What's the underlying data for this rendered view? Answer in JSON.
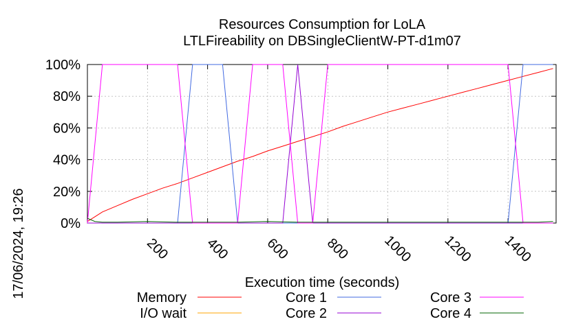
{
  "chart_data": {
    "type": "line",
    "title": "Resources Consumption for LoLA",
    "subtitle": "LTLFireability on DBSingleClientW-PT-d1m07",
    "xlabel": "Execution time (seconds)",
    "ylabel": "",
    "xlim": [
      0,
      1560
    ],
    "ylim": [
      0,
      100
    ],
    "xticks": [
      200,
      400,
      600,
      800,
      1000,
      1200,
      1400
    ],
    "xtick_labels": [
      "200",
      "400",
      "600",
      "800",
      "1000",
      "1200",
      "1400"
    ],
    "yticks": [
      0,
      20,
      40,
      60,
      80,
      100
    ],
    "ytick_labels": [
      "0%",
      "20%",
      "40%",
      "60%",
      "80%",
      "100%"
    ],
    "grid": true,
    "legend_position": "bottom",
    "timestamp": "17/06/2024, 19:26",
    "series": [
      {
        "name": "Memory",
        "color": "#ff0000",
        "x": [
          0,
          25,
          50,
          100,
          150,
          200,
          250,
          300,
          350,
          400,
          450,
          500,
          550,
          600,
          650,
          700,
          750,
          800,
          850,
          900,
          950,
          1000,
          1050,
          1100,
          1150,
          1200,
          1250,
          1300,
          1350,
          1400,
          1450,
          1500,
          1550
        ],
        "values": [
          1,
          4,
          7,
          11,
          15,
          18.5,
          22,
          25,
          28.5,
          32,
          35.5,
          39,
          42,
          45.5,
          48.5,
          51.5,
          54.5,
          57.5,
          61,
          64,
          67,
          70,
          72.5,
          75,
          77.5,
          80,
          82.5,
          85,
          87.5,
          90,
          92.5,
          95,
          97.5
        ]
      },
      {
        "name": "I/O wait",
        "color": "#ffa500",
        "x": [
          0,
          1550
        ],
        "values": [
          0,
          0
        ]
      },
      {
        "name": "Core 1",
        "color": "#4169e1",
        "x": [
          0,
          300,
          350,
          450,
          500,
          1400,
          1450,
          1550
        ],
        "values": [
          0,
          0,
          100,
          100,
          0,
          0,
          100,
          100
        ]
      },
      {
        "name": "Core 2",
        "color": "#9400d3",
        "x": [
          0,
          650,
          700,
          750,
          1550
        ],
        "values": [
          0,
          0,
          100,
          0,
          0
        ]
      },
      {
        "name": "Core 3",
        "color": "#ff00ff",
        "x": [
          0,
          50,
          300,
          350,
          500,
          550,
          650,
          700,
          750,
          800,
          1400,
          1450,
          1550
        ],
        "values": [
          0,
          100,
          100,
          0,
          0,
          100,
          100,
          0,
          0,
          100,
          100,
          0,
          0
        ]
      },
      {
        "name": "Core 4",
        "color": "#006400",
        "x": [
          0,
          25,
          50,
          100,
          200,
          300,
          400,
          500,
          600,
          700,
          800,
          900,
          1000,
          1100,
          1200,
          1300,
          1400,
          1500,
          1550
        ],
        "values": [
          3,
          1,
          0.5,
          0.5,
          1,
          0.5,
          0.5,
          0.5,
          1,
          0.5,
          0.5,
          0.5,
          0.5,
          0.5,
          0.5,
          0.5,
          0.5,
          0.5,
          1
        ]
      }
    ]
  }
}
